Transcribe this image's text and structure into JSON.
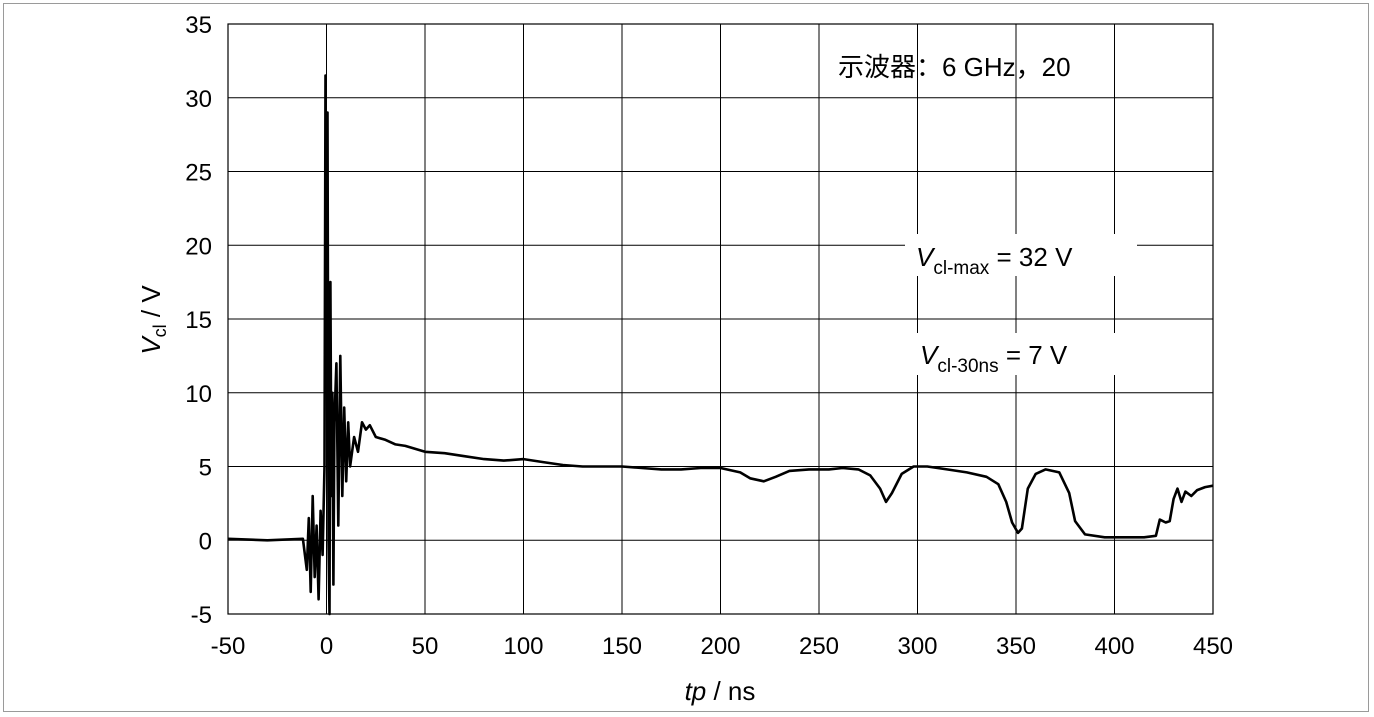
{
  "chart_data": {
    "type": "line",
    "title": "",
    "xlabel": {
      "italic": "tp",
      "rest": " / ns"
    },
    "ylabel": {
      "italic": "V",
      "sub": "cl",
      "rest": " / V"
    },
    "xlim": [
      -50,
      450
    ],
    "ylim": [
      -5,
      35
    ],
    "grid": true,
    "x_ticks": [
      "-50",
      "0",
      "50",
      "100",
      "150",
      "200",
      "250",
      "300",
      "350",
      "400",
      "450"
    ],
    "y_ticks": [
      "-5",
      "0",
      "5",
      "10",
      "15",
      "20",
      "25",
      "30",
      "35"
    ],
    "annotations": {
      "scope": "示波器：6 GHz，20",
      "vmax": {
        "italic": "V",
        "sub": "cl-max",
        "rest": " = 32 V"
      },
      "v30": {
        "italic": "V",
        "sub": "cl-30ns",
        "rest": " = 7 V"
      }
    },
    "series": [
      {
        "color": "#000000",
        "x": [
          -50,
          -30,
          -12,
          -10,
          -9,
          -8,
          -7,
          -6,
          -5,
          -4,
          -3,
          -2,
          -1,
          -0.5,
          0,
          0.5,
          1,
          1.5,
          2,
          2.5,
          3,
          3.5,
          4,
          5,
          6,
          7,
          8,
          9,
          10,
          11,
          12,
          14,
          16,
          18,
          20,
          22,
          25,
          30,
          35,
          40,
          50,
          60,
          70,
          80,
          90,
          100,
          110,
          120,
          130,
          140,
          150,
          160,
          170,
          180,
          190,
          200,
          210,
          215,
          222,
          228,
          235,
          245,
          255,
          262,
          270,
          276,
          281,
          284,
          287,
          292,
          298,
          305,
          315,
          325,
          335,
          341,
          345,
          348,
          351,
          353,
          356,
          360,
          365,
          372,
          377,
          380,
          385,
          395,
          405,
          415,
          421,
          423,
          426,
          428,
          430,
          432,
          434,
          436,
          439,
          442,
          446,
          450
        ],
        "y": [
          0.1,
          0.0,
          0.1,
          -2,
          1.5,
          -3.5,
          3,
          -2.5,
          1,
          -4,
          2,
          -1,
          5,
          31.5,
          20,
          29,
          0,
          -5,
          17.5,
          3,
          10,
          -3,
          8,
          12,
          1,
          12.5,
          3,
          9,
          4,
          8,
          5,
          7,
          6,
          8,
          7.5,
          7.8,
          7,
          6.8,
          6.5,
          6.4,
          6.0,
          5.9,
          5.7,
          5.5,
          5.4,
          5.5,
          5.3,
          5.1,
          5.0,
          5.0,
          5.0,
          4.9,
          4.8,
          4.8,
          4.9,
          4.9,
          4.6,
          4.2,
          4.0,
          4.3,
          4.7,
          4.8,
          4.8,
          4.9,
          4.8,
          4.4,
          3.5,
          2.6,
          3.2,
          4.5,
          5.0,
          5.0,
          4.8,
          4.6,
          4.3,
          3.8,
          2.6,
          1.2,
          0.5,
          0.8,
          3.5,
          4.5,
          4.8,
          4.6,
          3.2,
          1.3,
          0.4,
          0.2,
          0.2,
          0.2,
          0.3,
          1.4,
          1.2,
          1.3,
          2.8,
          3.5,
          2.6,
          3.3,
          3.0,
          3.4,
          3.6,
          3.7
        ]
      }
    ]
  }
}
